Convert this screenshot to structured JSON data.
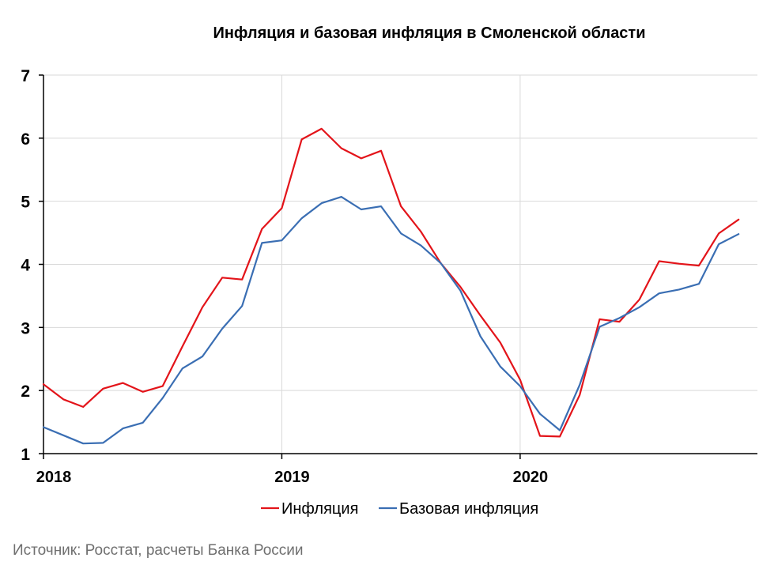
{
  "chart_data": {
    "type": "line",
    "title": "Инфляция и базовая инфляция в Смоленской области",
    "source": "Источник: Росстат, расчеты Банка России",
    "ylim": [
      1,
      7
    ],
    "yticks": [
      "1",
      "2",
      "3",
      "4",
      "5",
      "6",
      "7"
    ],
    "xlim": [
      0,
      36
    ],
    "xticks": [
      {
        "label": "2018",
        "x": 0
      },
      {
        "label": "2019",
        "x": 12
      },
      {
        "label": "2020",
        "x": 24
      }
    ],
    "grid": true,
    "legend_position": "bottom-center",
    "series": [
      {
        "name": "Инфляция",
        "color": "#e3141a",
        "x": [
          0,
          1,
          2,
          3,
          4,
          5,
          6,
          7,
          8,
          9,
          10,
          11,
          12,
          13,
          14,
          15,
          16,
          17,
          18,
          19,
          20,
          21,
          22,
          23,
          24,
          25,
          26,
          27,
          28,
          29,
          30,
          31,
          32,
          33,
          34,
          35
        ],
        "y": [
          2.1,
          1.86,
          1.74,
          2.03,
          2.12,
          1.98,
          2.07,
          2.7,
          3.32,
          3.79,
          3.76,
          4.56,
          4.89,
          5.98,
          6.15,
          5.84,
          5.68,
          5.8,
          4.92,
          4.52,
          4.02,
          3.64,
          3.19,
          2.76,
          2.17,
          1.28,
          1.27,
          1.93,
          3.13,
          3.09,
          3.44,
          4.05,
          4.01,
          3.98,
          4.49,
          4.71
        ]
      },
      {
        "name": "Базовая инфляция",
        "color": "#3a6eb3",
        "x": [
          0,
          1,
          2,
          3,
          4,
          5,
          6,
          7,
          8,
          9,
          10,
          11,
          12,
          13,
          14,
          15,
          16,
          17,
          18,
          19,
          20,
          21,
          22,
          23,
          24,
          25,
          26,
          27,
          28,
          29,
          30,
          31,
          32,
          33,
          34,
          35
        ],
        "y": [
          1.42,
          1.29,
          1.16,
          1.17,
          1.4,
          1.49,
          1.88,
          2.35,
          2.54,
          2.98,
          3.34,
          4.34,
          4.38,
          4.73,
          4.97,
          5.07,
          4.87,
          4.92,
          4.49,
          4.3,
          4.02,
          3.58,
          2.86,
          2.38,
          2.07,
          1.63,
          1.37,
          2.09,
          3.01,
          3.15,
          3.32,
          3.54,
          3.6,
          3.69,
          4.32,
          4.48
        ]
      }
    ]
  }
}
